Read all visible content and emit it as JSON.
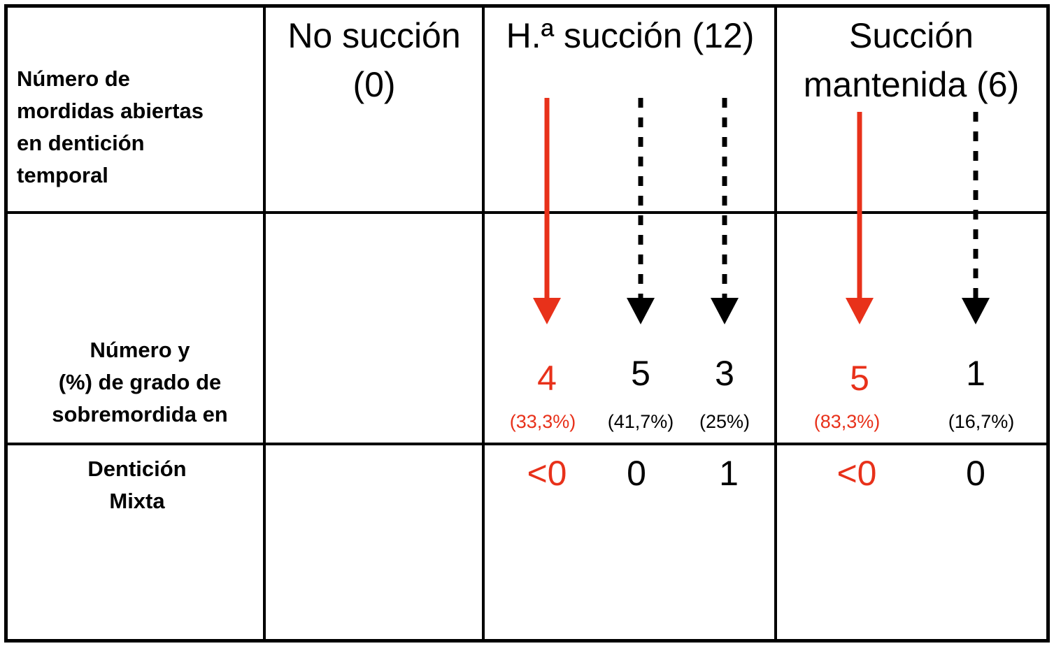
{
  "rows": {
    "row1_label": [
      "Número de",
      "mordidas abiertas",
      "en dentición",
      "temporal"
    ],
    "row2_label": [
      "Número y",
      "(%) de grado de",
      "sobremordida en"
    ],
    "row3_label": [
      "Dentición",
      "Mixta"
    ]
  },
  "columns": {
    "no_succion": [
      "No succión",
      "(0)"
    ],
    "ha_succion": [
      "H.ª succión (12)"
    ],
    "succion_mantenida": [
      "Succión",
      "mantenida (6)"
    ]
  },
  "groups": [
    {
      "id": "ha-succion",
      "items": [
        {
          "count": "4",
          "percent": "(33,3%)",
          "overbite": "<0",
          "color": "#e8311a",
          "arrow": "solid"
        },
        {
          "count": "5",
          "percent": "(41,7%)",
          "overbite": "0",
          "color": "#000000",
          "arrow": "dashed"
        },
        {
          "count": "3",
          "percent": "(25%)",
          "overbite": "1",
          "color": "#000000",
          "arrow": "dashed"
        }
      ]
    },
    {
      "id": "succion-mantenida",
      "items": [
        {
          "count": "5",
          "percent": "(83,3%)",
          "overbite": "<0",
          "color": "#e8311a",
          "arrow": "solid"
        },
        {
          "count": "1",
          "percent": "(16,7%)",
          "overbite": "0",
          "color": "#000000",
          "arrow": "dashed"
        }
      ]
    }
  ],
  "colors": {
    "accent_red": "#e8311a",
    "line": "#000000"
  }
}
